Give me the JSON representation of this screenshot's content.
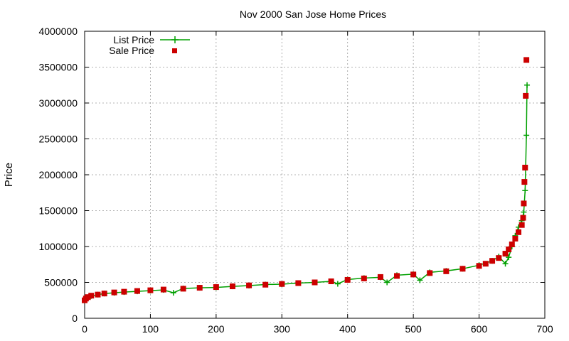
{
  "chart_data": {
    "type": "scatter",
    "title": "Nov 2000 San Jose Home Prices",
    "xlabel": "",
    "ylabel": "Price",
    "xlim": [
      0,
      700
    ],
    "ylim": [
      0,
      4000000
    ],
    "x_ticks": [
      0,
      100,
      200,
      300,
      400,
      500,
      600,
      700
    ],
    "y_ticks": [
      0,
      500000,
      1000000,
      1500000,
      2000000,
      2500000,
      3000000,
      3500000,
      4000000
    ],
    "grid": true,
    "legend_position": "top-left",
    "series": [
      {
        "name": "List Price",
        "style": "line-with-plus-markers",
        "color": "#00a000",
        "x": [
          0,
          2,
          5,
          10,
          20,
          30,
          45,
          60,
          80,
          100,
          120,
          135,
          150,
          175,
          200,
          225,
          250,
          275,
          300,
          325,
          350,
          375,
          385,
          400,
          425,
          450,
          460,
          475,
          500,
          510,
          525,
          550,
          575,
          600,
          620,
          630,
          640,
          645,
          650,
          655,
          660,
          665,
          668,
          670,
          672,
          673
        ],
        "y": [
          250000,
          270000,
          290000,
          310000,
          330000,
          345000,
          355000,
          365000,
          375000,
          385000,
          395000,
          355000,
          415000,
          425000,
          430000,
          445000,
          455000,
          470000,
          475000,
          490000,
          500000,
          515000,
          480000,
          540000,
          560000,
          570000,
          500000,
          600000,
          615000,
          530000,
          640000,
          660000,
          690000,
          740000,
          800000,
          860000,
          760000,
          850000,
          1000000,
          1150000,
          1270000,
          1360000,
          1480000,
          1780000,
          2550000,
          3250000
        ]
      },
      {
        "name": "Sale Price",
        "style": "square-markers",
        "color": "#cc0000",
        "x": [
          0,
          2,
          5,
          10,
          20,
          30,
          45,
          60,
          80,
          100,
          120,
          150,
          175,
          200,
          225,
          250,
          275,
          300,
          325,
          350,
          375,
          400,
          425,
          450,
          475,
          500,
          525,
          550,
          575,
          600,
          610,
          620,
          630,
          640,
          645,
          650,
          655,
          660,
          665,
          667,
          668,
          669,
          670,
          671
        ],
        "y": [
          250000,
          275000,
          295000,
          315000,
          330000,
          345000,
          360000,
          370000,
          380000,
          390000,
          400000,
          412000,
          425000,
          435000,
          445000,
          458000,
          468000,
          478000,
          490000,
          500000,
          515000,
          535000,
          555000,
          575000,
          590000,
          610000,
          630000,
          655000,
          690000,
          730000,
          760000,
          800000,
          840000,
          900000,
          960000,
          1030000,
          1110000,
          1200000,
          1300000,
          1400000,
          1600000,
          1900000,
          2100000,
          3100000
        ]
      },
      {
        "name": "",
        "style": "square-markers",
        "color": "#cc0000",
        "x": [
          672
        ],
        "y": [
          3600000
        ]
      }
    ]
  }
}
